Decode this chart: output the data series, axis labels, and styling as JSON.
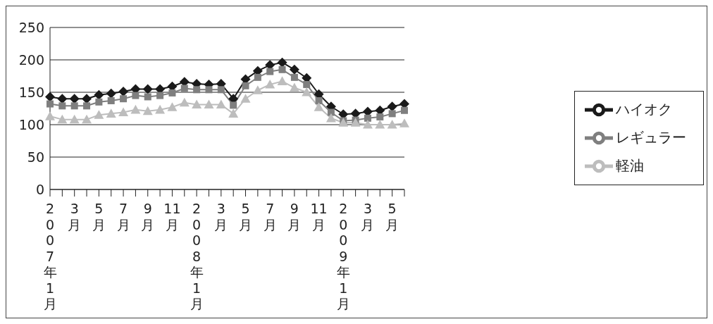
{
  "chart_data": {
    "type": "line",
    "categories": [
      "2007年1月",
      null,
      "3月",
      null,
      "5月",
      null,
      "7月",
      null,
      "9月",
      null,
      "11月",
      null,
      "2008年1月",
      null,
      "3月",
      null,
      "5月",
      null,
      "7月",
      null,
      "9月",
      null,
      "11月",
      null,
      "2009年1月",
      null,
      "3月",
      null,
      "5月",
      null
    ],
    "ylim": [
      0,
      250
    ],
    "yticks": [
      0,
      50,
      100,
      150,
      200,
      250
    ],
    "grid": "y",
    "legend": "right",
    "series": [
      {
        "name": "ハイオク",
        "color": "#1a1a1a",
        "marker": "diamond",
        "values": [
          143,
          140,
          140,
          140,
          146,
          148,
          151,
          155,
          155,
          155,
          159,
          166,
          163,
          162,
          163,
          140,
          170,
          183,
          192,
          196,
          185,
          172,
          147,
          128,
          116,
          117,
          120,
          122,
          128,
          132
        ]
      },
      {
        "name": "レギュラー",
        "color": "#7f7f7f",
        "marker": "square",
        "values": [
          132,
          129,
          129,
          129,
          135,
          137,
          140,
          145,
          143,
          145,
          149,
          156,
          154,
          154,
          154,
          130,
          160,
          173,
          182,
          185,
          173,
          162,
          137,
          119,
          106,
          107,
          110,
          112,
          117,
          122
        ]
      },
      {
        "name": "軽油",
        "color": "#bdbdbd",
        "marker": "triangle",
        "values": [
          113,
          108,
          108,
          108,
          115,
          117,
          119,
          123,
          121,
          123,
          127,
          134,
          131,
          131,
          131,
          117,
          140,
          153,
          162,
          167,
          157,
          150,
          127,
          110,
          103,
          103,
          100,
          100,
          100,
          102
        ]
      }
    ]
  }
}
